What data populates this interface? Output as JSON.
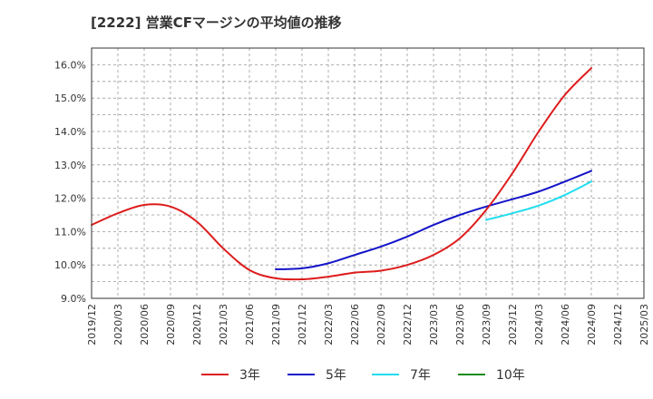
{
  "chart_data": {
    "type": "line",
    "title": "[2222]  営業CFマージンの平均値の推移",
    "xlabel": "",
    "ylabel": "",
    "x_ticks": [
      "2019/12",
      "2020/03",
      "2020/06",
      "2020/09",
      "2020/12",
      "2021/03",
      "2021/06",
      "2021/09",
      "2021/12",
      "2022/03",
      "2022/06",
      "2022/09",
      "2022/12",
      "2023/03",
      "2023/06",
      "2023/09",
      "2023/12",
      "2024/03",
      "2024/06",
      "2024/09",
      "2024/12",
      "2025/03"
    ],
    "y_ticks": [
      "9.0%",
      "10.0%",
      "11.0%",
      "12.0%",
      "13.0%",
      "14.0%",
      "15.0%",
      "16.0%"
    ],
    "ylim": [
      9.0,
      16.5
    ],
    "grid": true,
    "legend_position": "bottom",
    "series": [
      {
        "name": "3年",
        "color": "#dd1c1c",
        "points": [
          [
            "2019/12",
            11.2
          ],
          [
            "2020/03",
            11.55
          ],
          [
            "2020/06",
            11.8
          ],
          [
            "2020/09",
            11.75
          ],
          [
            "2020/12",
            11.3
          ],
          [
            "2021/03",
            10.5
          ],
          [
            "2021/06",
            9.85
          ],
          [
            "2021/09",
            9.6
          ],
          [
            "2021/12",
            9.57
          ],
          [
            "2022/03",
            9.65
          ],
          [
            "2022/06",
            9.77
          ],
          [
            "2022/09",
            9.83
          ],
          [
            "2022/12",
            10.0
          ],
          [
            "2023/03",
            10.3
          ],
          [
            "2023/06",
            10.8
          ],
          [
            "2023/09",
            11.65
          ],
          [
            "2023/12",
            12.75
          ],
          [
            "2024/03",
            14.0
          ],
          [
            "2024/06",
            15.1
          ],
          [
            "2024/09",
            15.9
          ]
        ]
      },
      {
        "name": "5年",
        "color": "#1414c8",
        "points": [
          [
            "2021/09",
            9.87
          ],
          [
            "2021/12",
            9.9
          ],
          [
            "2022/03",
            10.05
          ],
          [
            "2022/06",
            10.3
          ],
          [
            "2022/09",
            10.55
          ],
          [
            "2022/12",
            10.85
          ],
          [
            "2023/03",
            11.2
          ],
          [
            "2023/06",
            11.5
          ],
          [
            "2023/09",
            11.75
          ],
          [
            "2023/12",
            11.97
          ],
          [
            "2024/03",
            12.2
          ],
          [
            "2024/06",
            12.5
          ],
          [
            "2024/09",
            12.82
          ]
        ]
      },
      {
        "name": "7年",
        "color": "#22ddee",
        "points": [
          [
            "2023/09",
            11.35
          ],
          [
            "2023/12",
            11.55
          ],
          [
            "2024/03",
            11.78
          ],
          [
            "2024/06",
            12.1
          ],
          [
            "2024/09",
            12.5
          ]
        ]
      },
      {
        "name": "10年",
        "color": "#1e8c1e",
        "points": []
      }
    ]
  }
}
